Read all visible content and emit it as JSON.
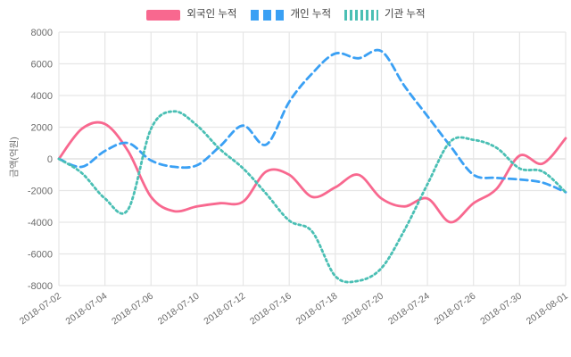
{
  "colors": {
    "background": "#ffffff",
    "grid": "#e6e6e6",
    "zero_line": "#dcdcdc",
    "tick_text": "#6b6b6b",
    "legend_text": "#3f3f3f",
    "foreigner": "#f8688f",
    "individual": "#3aa0f4",
    "institution": "#4abfb4"
  },
  "chart_data": {
    "type": "line",
    "title": "",
    "xlabel": "",
    "ylabel": "금액(억원)",
    "ylim": [
      -8000,
      8000
    ],
    "yticks": [
      8000,
      6000,
      4000,
      2000,
      0,
      -2000,
      -4000,
      -6000,
      -8000
    ],
    "grid": true,
    "legend_position": "top-center",
    "line_shape": "spline",
    "x": [
      "2018-07-02",
      "2018-07-03",
      "2018-07-04",
      "2018-07-05",
      "2018-07-06",
      "2018-07-09",
      "2018-07-10",
      "2018-07-11",
      "2018-07-12",
      "2018-07-13",
      "2018-07-16",
      "2018-07-17",
      "2018-07-18",
      "2018-07-19",
      "2018-07-20",
      "2018-07-23",
      "2018-07-24",
      "2018-07-25",
      "2018-07-26",
      "2018-07-27",
      "2018-07-30",
      "2018-07-31",
      "2018-08-01"
    ],
    "xtick_labels": [
      "2018-07-02",
      "2018-07-04",
      "2018-07-06",
      "2018-07-10",
      "2018-07-12",
      "2018-07-16",
      "2018-07-18",
      "2018-07-20",
      "2018-07-24",
      "2018-07-26",
      "2018-07-30",
      "2018-08-01"
    ],
    "xtick_every": 2,
    "series": [
      {
        "name": "외국인 누적",
        "style": "solid",
        "color": "#f8688f",
        "values": [
          0,
          1900,
          2200,
          500,
          -2400,
          -3300,
          -3000,
          -2800,
          -2700,
          -800,
          -1000,
          -2400,
          -1800,
          -1000,
          -2500,
          -3000,
          -2500,
          -4000,
          -2800,
          -1900,
          200,
          -300,
          1300
        ]
      },
      {
        "name": "개인 누적",
        "style": "dashed",
        "color": "#3aa0f4",
        "values": [
          0,
          -500,
          500,
          1000,
          -100,
          -500,
          -400,
          800,
          2100,
          900,
          3600,
          5400,
          6650,
          6350,
          6800,
          4600,
          2700,
          800,
          -1000,
          -1200,
          -1300,
          -1500,
          -2100
        ]
      },
      {
        "name": "기관 누적",
        "style": "dotted",
        "color": "#4abfb4",
        "values": [
          0,
          -900,
          -2500,
          -3200,
          1900,
          3000,
          2100,
          600,
          -600,
          -2200,
          -3900,
          -4600,
          -7400,
          -7700,
          -6900,
          -4500,
          -1600,
          1100,
          1200,
          700,
          -600,
          -800,
          -2100
        ]
      }
    ]
  }
}
